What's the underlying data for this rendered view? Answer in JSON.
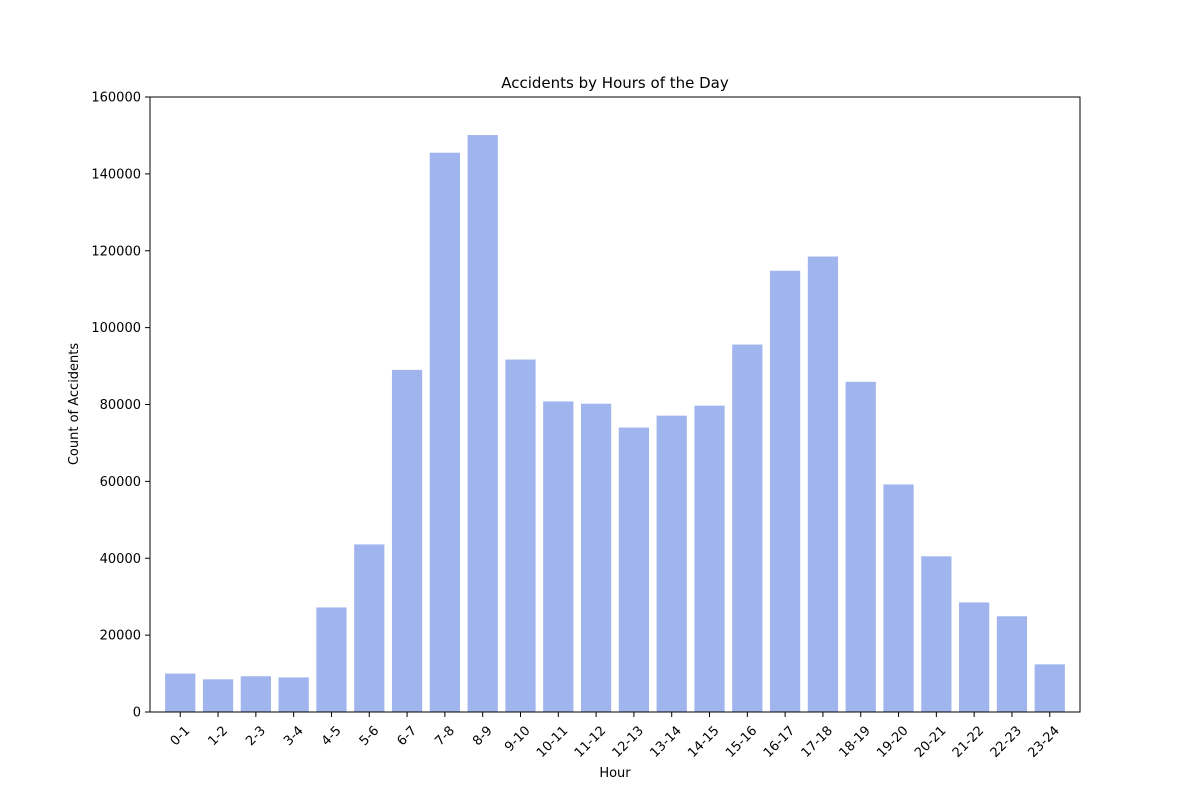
{
  "chart_data": {
    "type": "bar",
    "title": "Accidents by Hours of the Day",
    "xlabel": "Hour",
    "ylabel": "Count of Accidents",
    "categories": [
      "0-1",
      "1-2",
      "2-3",
      "3-4",
      "4-5",
      "5-6",
      "6-7",
      "7-8",
      "8-9",
      "9-10",
      "10-11",
      "11-12",
      "12-13",
      "13-14",
      "14-15",
      "15-16",
      "16-17",
      "17-18",
      "18-19",
      "19-20",
      "20-21",
      "21-22",
      "22-23",
      "23-24"
    ],
    "values": [
      10000,
      8500,
      9300,
      9000,
      27200,
      43600,
      89000,
      145500,
      150100,
      91700,
      80800,
      80200,
      74000,
      77100,
      79700,
      95600,
      114800,
      118500,
      85900,
      59200,
      40500,
      28500,
      24900,
      12400
    ],
    "ylim": [
      0,
      160000
    ],
    "yticks": [
      0,
      20000,
      40000,
      60000,
      80000,
      100000,
      120000,
      140000,
      160000
    ],
    "bar_color": "#a0b4ee",
    "grid": false,
    "legend": "none"
  }
}
